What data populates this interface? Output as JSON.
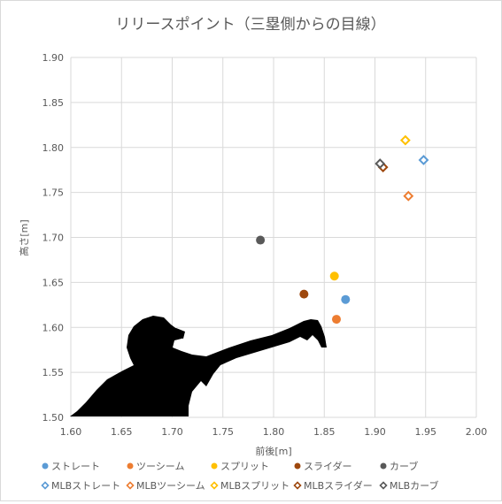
{
  "chart_data": {
    "type": "scatter",
    "title": "リリースポイント（三塁側からの目線）",
    "xlabel": "前後[m]",
    "ylabel": "高さ[m]",
    "xlim": [
      1.6,
      2.0
    ],
    "ylim": [
      1.5,
      1.9
    ],
    "x_ticks": [
      "1.60",
      "1.65",
      "1.70",
      "1.75",
      "1.80",
      "1.85",
      "1.90",
      "1.95",
      "2.00"
    ],
    "y_ticks": [
      "1.50",
      "1.55",
      "1.60",
      "1.65",
      "1.70",
      "1.75",
      "1.80",
      "1.85",
      "1.90"
    ],
    "grid": "vertical and horizontal major gridlines",
    "legend_position": "bottom",
    "background_decoration": "silhouette of a pitcher in throwing motion, lower left",
    "series": [
      {
        "name": "ストレート",
        "marker": "filled-circle",
        "color": "#5b9bd5",
        "points": [
          {
            "x": 1.871,
            "y": 1.631
          }
        ]
      },
      {
        "name": "ツーシーム",
        "marker": "filled-circle",
        "color": "#ed7d31",
        "points": [
          {
            "x": 1.862,
            "y": 1.609
          }
        ]
      },
      {
        "name": "スプリット",
        "marker": "filled-circle",
        "color": "#ffc000",
        "points": [
          {
            "x": 1.86,
            "y": 1.657
          }
        ]
      },
      {
        "name": "スライダー",
        "marker": "filled-circle",
        "color": "#9e480e",
        "points": [
          {
            "x": 1.83,
            "y": 1.637
          }
        ]
      },
      {
        "name": "カーブ",
        "marker": "filled-circle",
        "color": "#595959",
        "points": [
          {
            "x": 1.787,
            "y": 1.697
          }
        ]
      },
      {
        "name": "MLBストレート",
        "marker": "open-diamond",
        "color": "#5b9bd5",
        "points": [
          {
            "x": 1.948,
            "y": 1.786
          }
        ]
      },
      {
        "name": "MLBツーシーム",
        "marker": "open-diamond",
        "color": "#ed7d31",
        "points": [
          {
            "x": 1.933,
            "y": 1.746
          }
        ]
      },
      {
        "name": "MLBスプリット",
        "marker": "open-diamond",
        "color": "#ffc000",
        "points": [
          {
            "x": 1.93,
            "y": 1.808
          }
        ]
      },
      {
        "name": "MLBスライダー",
        "marker": "open-diamond",
        "color": "#9e480e",
        "points": [
          {
            "x": 1.908,
            "y": 1.778
          }
        ]
      },
      {
        "name": "MLBカーブ",
        "marker": "open-diamond",
        "color": "#595959",
        "points": [
          {
            "x": 1.905,
            "y": 1.782
          }
        ]
      }
    ]
  }
}
